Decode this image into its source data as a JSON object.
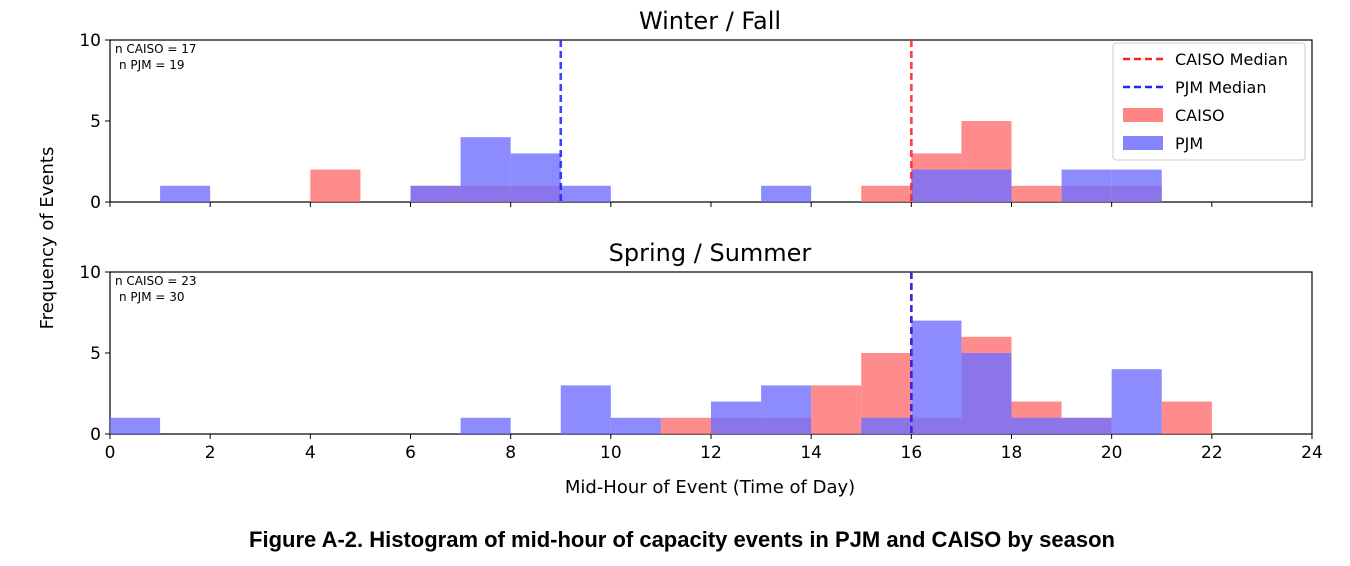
{
  "figure_caption": "Figure A-2. Histogram of mid-hour of capacity events in PJM and CAISO by season",
  "chart_data": [
    {
      "type": "bar",
      "title": "Winter / Fall",
      "xlim": [
        0,
        24
      ],
      "ylim": [
        0,
        10
      ],
      "xticks": [
        "0",
        "2",
        "4",
        "6",
        "8",
        "10",
        "12",
        "14",
        "16",
        "18",
        "20",
        "22",
        "24"
      ],
      "yticks": [
        "0",
        "5",
        "10"
      ],
      "annotations": [
        "n CAISO = 17",
        "n PJM = 19"
      ],
      "series": [
        {
          "name": "CAISO",
          "color": "#ff6f6f",
          "bins": [
            {
              "x0": 4,
              "x1": 5,
              "count": 2
            },
            {
              "x0": 6,
              "x1": 7,
              "count": 1
            },
            {
              "x0": 7,
              "x1": 8,
              "count": 1
            },
            {
              "x0": 8,
              "x1": 9,
              "count": 1
            },
            {
              "x0": 15,
              "x1": 16,
              "count": 1
            },
            {
              "x0": 16,
              "x1": 17,
              "count": 3
            },
            {
              "x0": 17,
              "x1": 18,
              "count": 5
            },
            {
              "x0": 18,
              "x1": 19,
              "count": 1
            },
            {
              "x0": 19,
              "x1": 20,
              "count": 1
            },
            {
              "x0": 20,
              "x1": 21,
              "count": 1
            }
          ]
        },
        {
          "name": "PJM",
          "color": "#6f6fff",
          "bins": [
            {
              "x0": 1,
              "x1": 2,
              "count": 1
            },
            {
              "x0": 6,
              "x1": 7,
              "count": 1
            },
            {
              "x0": 7,
              "x1": 8,
              "count": 4
            },
            {
              "x0": 8,
              "x1": 9,
              "count": 3
            },
            {
              "x0": 9,
              "x1": 10,
              "count": 1
            },
            {
              "x0": 13,
              "x1": 14,
              "count": 1
            },
            {
              "x0": 16,
              "x1": 17,
              "count": 2
            },
            {
              "x0": 17,
              "x1": 18,
              "count": 2
            },
            {
              "x0": 19,
              "x1": 20,
              "count": 2
            },
            {
              "x0": 20,
              "x1": 21,
              "count": 2
            }
          ]
        }
      ],
      "medians": [
        {
          "name": "CAISO Median",
          "x": 16,
          "color": "#ff2020"
        },
        {
          "name": "PJM Median",
          "x": 9,
          "color": "#2020ff"
        }
      ],
      "legend": {
        "placement": "top-right",
        "entries": [
          {
            "label": "CAISO Median",
            "kind": "dashed",
            "color": "#ff2020"
          },
          {
            "label": "PJM Median",
            "kind": "dashed",
            "color": "#2020ff"
          },
          {
            "label": "CAISO",
            "kind": "patch",
            "color": "#ff6f6f"
          },
          {
            "label": "PJM",
            "kind": "patch",
            "color": "#6f6fff"
          }
        ]
      }
    },
    {
      "type": "bar",
      "title": "Spring / Summer",
      "xlim": [
        0,
        24
      ],
      "ylim": [
        0,
        10
      ],
      "xticks": [
        "0",
        "2",
        "4",
        "6",
        "8",
        "10",
        "12",
        "14",
        "16",
        "18",
        "20",
        "22",
        "24"
      ],
      "yticks": [
        "0",
        "5",
        "10"
      ],
      "annotations": [
        "n CAISO = 23",
        "n PJM = 30"
      ],
      "series": [
        {
          "name": "CAISO",
          "color": "#ff6f6f",
          "bins": [
            {
              "x0": 11,
              "x1": 12,
              "count": 1
            },
            {
              "x0": 12,
              "x1": 13,
              "count": 1
            },
            {
              "x0": 13,
              "x1": 14,
              "count": 1
            },
            {
              "x0": 14,
              "x1": 15,
              "count": 3
            },
            {
              "x0": 15,
              "x1": 16,
              "count": 5
            },
            {
              "x0": 16,
              "x1": 17,
              "count": 1
            },
            {
              "x0": 17,
              "x1": 18,
              "count": 6
            },
            {
              "x0": 18,
              "x1": 19,
              "count": 2
            },
            {
              "x0": 19,
              "x1": 20,
              "count": 1
            },
            {
              "x0": 21,
              "x1": 22,
              "count": 2
            }
          ]
        },
        {
          "name": "PJM",
          "color": "#6f6fff",
          "bins": [
            {
              "x0": 0,
              "x1": 1,
              "count": 1
            },
            {
              "x0": 7,
              "x1": 8,
              "count": 1
            },
            {
              "x0": 9,
              "x1": 10,
              "count": 3
            },
            {
              "x0": 10,
              "x1": 11,
              "count": 1
            },
            {
              "x0": 12,
              "x1": 13,
              "count": 2
            },
            {
              "x0": 13,
              "x1": 14,
              "count": 3
            },
            {
              "x0": 15,
              "x1": 16,
              "count": 1
            },
            {
              "x0": 16,
              "x1": 17,
              "count": 7
            },
            {
              "x0": 17,
              "x1": 18,
              "count": 5
            },
            {
              "x0": 18,
              "x1": 19,
              "count": 1
            },
            {
              "x0": 19,
              "x1": 20,
              "count": 1
            },
            {
              "x0": 20,
              "x1": 21,
              "count": 4
            }
          ]
        }
      ],
      "medians": [
        {
          "name": "CAISO Median",
          "x": 16,
          "color": "#ff2020"
        },
        {
          "name": "PJM Median",
          "x": 16,
          "color": "#2020ff"
        }
      ]
    }
  ],
  "shared_axes": {
    "xlabel": "Mid-Hour of Event (Time of Day)",
    "ylabel": "Frequency of Events"
  }
}
